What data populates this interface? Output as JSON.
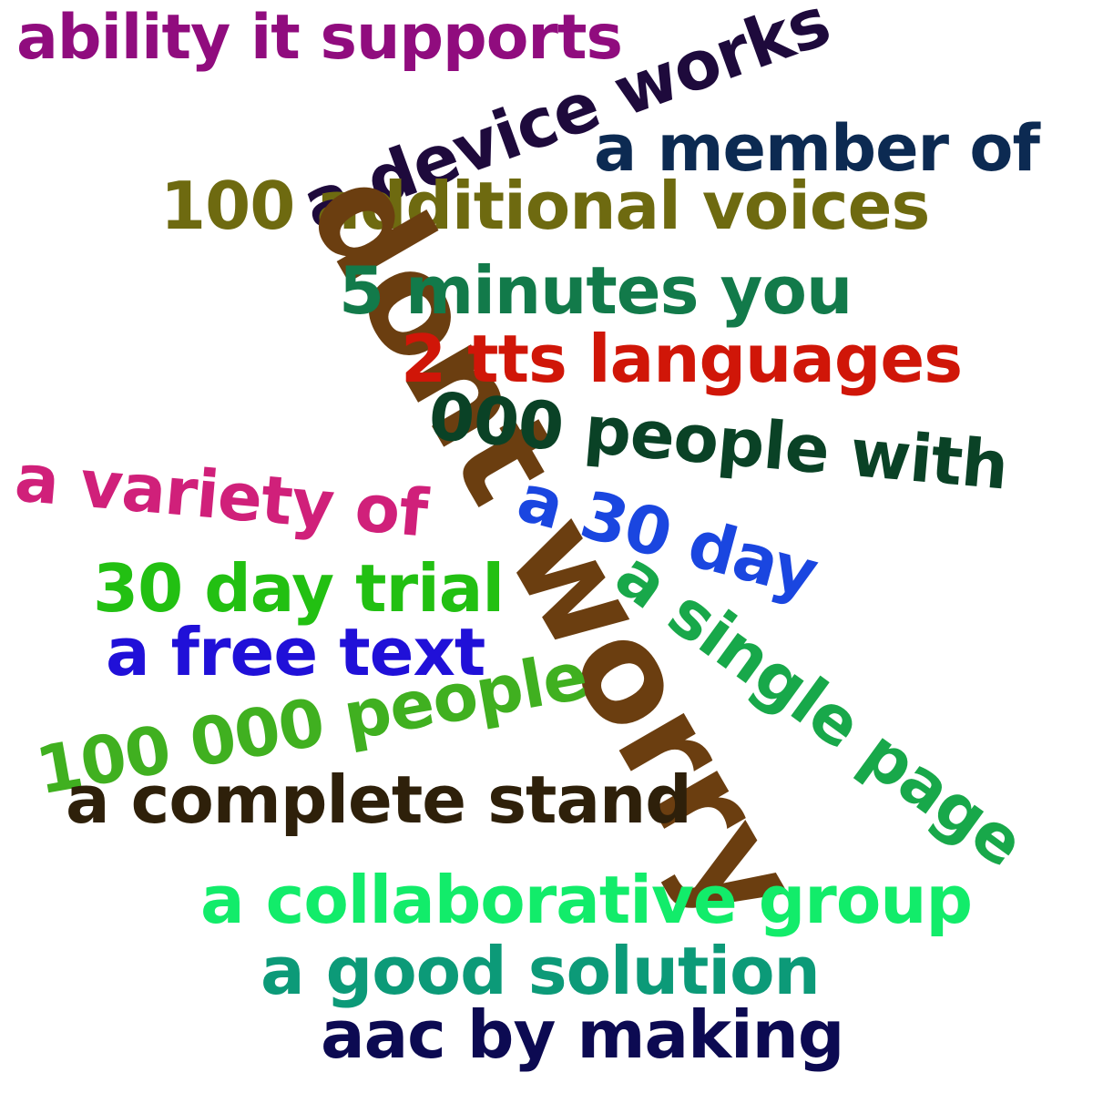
{
  "words": [
    {
      "text": "ability it supports",
      "color": "#900c7e"
    },
    {
      "text": "a device works",
      "color": "#1e0a3c"
    },
    {
      "text": "a member of",
      "color": "#0c2a52"
    },
    {
      "text": "100 additional voices",
      "color": "#6e6a10"
    },
    {
      "text": "dont worry",
      "color": "#6b3e10"
    },
    {
      "text": "5 minutes you",
      "color": "#127a4a"
    },
    {
      "text": "2 tts languages",
      "color": "#d01608"
    },
    {
      "text": "000 people with",
      "color": "#0a4226"
    },
    {
      "text": "a variety of",
      "color": "#d0207a"
    },
    {
      "text": "a 30 day",
      "color": "#1a46e0"
    },
    {
      "text": "30 day trial",
      "color": "#22c012"
    },
    {
      "text": "a single page",
      "color": "#18a84a"
    },
    {
      "text": "a free text",
      "color": "#2010d8"
    },
    {
      "text": "100 000 people",
      "color": "#40b020"
    },
    {
      "text": "a complete stand",
      "color": "#2e200a"
    },
    {
      "text": "a collaborative group",
      "color": "#12ec6a"
    },
    {
      "text": "a good solution",
      "color": "#0c9a78"
    },
    {
      "text": "aac by making",
      "color": "#0c0a52"
    }
  ]
}
